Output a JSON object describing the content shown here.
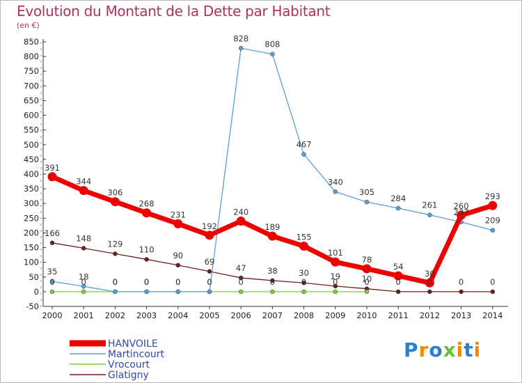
{
  "chart_data": {
    "type": "line",
    "title": "Evolution du Montant de la Dette par Habitant",
    "subtitle": "(en €)",
    "x": [
      "2000",
      "2001",
      "2002",
      "2003",
      "2004",
      "2005",
      "2006",
      "2007",
      "2008",
      "2009",
      "2010",
      "2011",
      "2012",
      "2013",
      "2014"
    ],
    "ylim": [
      -50,
      850
    ],
    "yticks": [
      -50,
      0,
      50,
      100,
      150,
      200,
      250,
      300,
      350,
      400,
      450,
      500,
      550,
      600,
      650,
      700,
      750,
      800,
      850
    ],
    "grid": false,
    "legend_position": "bottom-left",
    "series": [
      {
        "name": "HANVOILE",
        "color": "#ee0000",
        "values": [
          391,
          344,
          306,
          268,
          231,
          192,
          240,
          189,
          155,
          101,
          78,
          54,
          30,
          260,
          293
        ],
        "labels": [
          "391",
          "344",
          "306",
          "268",
          "231",
          "192",
          "240",
          "189",
          "155",
          "101",
          "78",
          "54",
          "30",
          "260",
          "293"
        ]
      },
      {
        "name": "Martincourt",
        "color": "#5a9fd4",
        "values": [
          35,
          18,
          0,
          0,
          0,
          0,
          828,
          808,
          467,
          340,
          305,
          284,
          261,
          237,
          209
        ],
        "labels": [
          "35",
          "18",
          "0",
          "0",
          "0",
          "0",
          "828",
          "808",
          "467",
          "340",
          "305",
          "284",
          "261",
          "237",
          "209"
        ]
      },
      {
        "name": "Vrocourt",
        "color": "#7ccc40",
        "values": [
          0,
          0,
          0,
          0,
          0,
          0,
          0,
          0,
          0,
          0,
          0,
          null,
          null,
          null,
          null
        ],
        "labels": [
          "0",
          "0",
          "0",
          "0",
          "0",
          "0",
          "0",
          "0",
          "0",
          "0",
          "0",
          "",
          "",
          "",
          ""
        ]
      },
      {
        "name": "Glatigny",
        "color": "#6b1f1f",
        "values": [
          166,
          148,
          129,
          110,
          90,
          69,
          47,
          38,
          30,
          19,
          10,
          0,
          0,
          0,
          0
        ],
        "labels": [
          "166",
          "148",
          "129",
          "110",
          "90",
          "69",
          "47",
          "38",
          "30",
          "19",
          "10",
          "0",
          "0",
          "0",
          "0"
        ]
      }
    ]
  },
  "logo": {
    "text": "Proxiti",
    "letters": [
      "P",
      "r",
      "o",
      "x",
      "i",
      "t",
      "i"
    ],
    "colors": [
      "#2a7fd0",
      "#f08a00",
      "#2a7fd0",
      "#6ac03a",
      "#f08a00",
      "#2a7fd0",
      "#f08a00"
    ]
  }
}
